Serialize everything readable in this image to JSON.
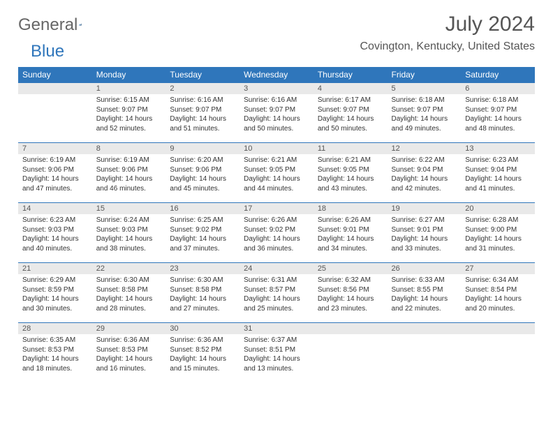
{
  "logo": {
    "word1": "General",
    "word2": "Blue"
  },
  "title": "July 2024",
  "subtitle": "Covington, Kentucky, United States",
  "colors": {
    "header_bg": "#2f76bb",
    "header_text": "#ffffff",
    "daynum_bg": "#e9e9e9",
    "rule": "#2f76bb",
    "text": "#333333",
    "title_text": "#555555",
    "page_bg": "#ffffff"
  },
  "weekdays": [
    "Sunday",
    "Monday",
    "Tuesday",
    "Wednesday",
    "Thursday",
    "Friday",
    "Saturday"
  ],
  "weeks": [
    [
      {
        "n": "",
        "sunrise": "",
        "sunset": "",
        "daylight": ""
      },
      {
        "n": "1",
        "sunrise": "Sunrise: 6:15 AM",
        "sunset": "Sunset: 9:07 PM",
        "daylight": "Daylight: 14 hours and 52 minutes."
      },
      {
        "n": "2",
        "sunrise": "Sunrise: 6:16 AM",
        "sunset": "Sunset: 9:07 PM",
        "daylight": "Daylight: 14 hours and 51 minutes."
      },
      {
        "n": "3",
        "sunrise": "Sunrise: 6:16 AM",
        "sunset": "Sunset: 9:07 PM",
        "daylight": "Daylight: 14 hours and 50 minutes."
      },
      {
        "n": "4",
        "sunrise": "Sunrise: 6:17 AM",
        "sunset": "Sunset: 9:07 PM",
        "daylight": "Daylight: 14 hours and 50 minutes."
      },
      {
        "n": "5",
        "sunrise": "Sunrise: 6:18 AM",
        "sunset": "Sunset: 9:07 PM",
        "daylight": "Daylight: 14 hours and 49 minutes."
      },
      {
        "n": "6",
        "sunrise": "Sunrise: 6:18 AM",
        "sunset": "Sunset: 9:07 PM",
        "daylight": "Daylight: 14 hours and 48 minutes."
      }
    ],
    [
      {
        "n": "7",
        "sunrise": "Sunrise: 6:19 AM",
        "sunset": "Sunset: 9:06 PM",
        "daylight": "Daylight: 14 hours and 47 minutes."
      },
      {
        "n": "8",
        "sunrise": "Sunrise: 6:19 AM",
        "sunset": "Sunset: 9:06 PM",
        "daylight": "Daylight: 14 hours and 46 minutes."
      },
      {
        "n": "9",
        "sunrise": "Sunrise: 6:20 AM",
        "sunset": "Sunset: 9:06 PM",
        "daylight": "Daylight: 14 hours and 45 minutes."
      },
      {
        "n": "10",
        "sunrise": "Sunrise: 6:21 AM",
        "sunset": "Sunset: 9:05 PM",
        "daylight": "Daylight: 14 hours and 44 minutes."
      },
      {
        "n": "11",
        "sunrise": "Sunrise: 6:21 AM",
        "sunset": "Sunset: 9:05 PM",
        "daylight": "Daylight: 14 hours and 43 minutes."
      },
      {
        "n": "12",
        "sunrise": "Sunrise: 6:22 AM",
        "sunset": "Sunset: 9:04 PM",
        "daylight": "Daylight: 14 hours and 42 minutes."
      },
      {
        "n": "13",
        "sunrise": "Sunrise: 6:23 AM",
        "sunset": "Sunset: 9:04 PM",
        "daylight": "Daylight: 14 hours and 41 minutes."
      }
    ],
    [
      {
        "n": "14",
        "sunrise": "Sunrise: 6:23 AM",
        "sunset": "Sunset: 9:03 PM",
        "daylight": "Daylight: 14 hours and 40 minutes."
      },
      {
        "n": "15",
        "sunrise": "Sunrise: 6:24 AM",
        "sunset": "Sunset: 9:03 PM",
        "daylight": "Daylight: 14 hours and 38 minutes."
      },
      {
        "n": "16",
        "sunrise": "Sunrise: 6:25 AM",
        "sunset": "Sunset: 9:02 PM",
        "daylight": "Daylight: 14 hours and 37 minutes."
      },
      {
        "n": "17",
        "sunrise": "Sunrise: 6:26 AM",
        "sunset": "Sunset: 9:02 PM",
        "daylight": "Daylight: 14 hours and 36 minutes."
      },
      {
        "n": "18",
        "sunrise": "Sunrise: 6:26 AM",
        "sunset": "Sunset: 9:01 PM",
        "daylight": "Daylight: 14 hours and 34 minutes."
      },
      {
        "n": "19",
        "sunrise": "Sunrise: 6:27 AM",
        "sunset": "Sunset: 9:01 PM",
        "daylight": "Daylight: 14 hours and 33 minutes."
      },
      {
        "n": "20",
        "sunrise": "Sunrise: 6:28 AM",
        "sunset": "Sunset: 9:00 PM",
        "daylight": "Daylight: 14 hours and 31 minutes."
      }
    ],
    [
      {
        "n": "21",
        "sunrise": "Sunrise: 6:29 AM",
        "sunset": "Sunset: 8:59 PM",
        "daylight": "Daylight: 14 hours and 30 minutes."
      },
      {
        "n": "22",
        "sunrise": "Sunrise: 6:30 AM",
        "sunset": "Sunset: 8:58 PM",
        "daylight": "Daylight: 14 hours and 28 minutes."
      },
      {
        "n": "23",
        "sunrise": "Sunrise: 6:30 AM",
        "sunset": "Sunset: 8:58 PM",
        "daylight": "Daylight: 14 hours and 27 minutes."
      },
      {
        "n": "24",
        "sunrise": "Sunrise: 6:31 AM",
        "sunset": "Sunset: 8:57 PM",
        "daylight": "Daylight: 14 hours and 25 minutes."
      },
      {
        "n": "25",
        "sunrise": "Sunrise: 6:32 AM",
        "sunset": "Sunset: 8:56 PM",
        "daylight": "Daylight: 14 hours and 23 minutes."
      },
      {
        "n": "26",
        "sunrise": "Sunrise: 6:33 AM",
        "sunset": "Sunset: 8:55 PM",
        "daylight": "Daylight: 14 hours and 22 minutes."
      },
      {
        "n": "27",
        "sunrise": "Sunrise: 6:34 AM",
        "sunset": "Sunset: 8:54 PM",
        "daylight": "Daylight: 14 hours and 20 minutes."
      }
    ],
    [
      {
        "n": "28",
        "sunrise": "Sunrise: 6:35 AM",
        "sunset": "Sunset: 8:53 PM",
        "daylight": "Daylight: 14 hours and 18 minutes."
      },
      {
        "n": "29",
        "sunrise": "Sunrise: 6:36 AM",
        "sunset": "Sunset: 8:53 PM",
        "daylight": "Daylight: 14 hours and 16 minutes."
      },
      {
        "n": "30",
        "sunrise": "Sunrise: 6:36 AM",
        "sunset": "Sunset: 8:52 PM",
        "daylight": "Daylight: 14 hours and 15 minutes."
      },
      {
        "n": "31",
        "sunrise": "Sunrise: 6:37 AM",
        "sunset": "Sunset: 8:51 PM",
        "daylight": "Daylight: 14 hours and 13 minutes."
      },
      {
        "n": "",
        "sunrise": "",
        "sunset": "",
        "daylight": ""
      },
      {
        "n": "",
        "sunrise": "",
        "sunset": "",
        "daylight": ""
      },
      {
        "n": "",
        "sunrise": "",
        "sunset": "",
        "daylight": ""
      }
    ]
  ]
}
